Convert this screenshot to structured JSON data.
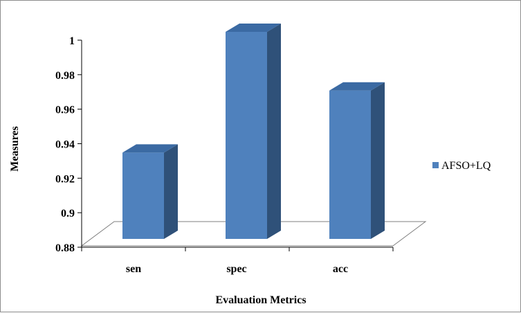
{
  "chart_data": {
    "type": "bar",
    "style": "3d-column",
    "categories": [
      "sen",
      "spec",
      "acc"
    ],
    "series": [
      {
        "name": "AFSO+LQ",
        "values": [
          0.93,
          1.0,
          0.966
        ]
      }
    ],
    "xlabel": "Evaluation Metrics",
    "ylabel": "Measures",
    "ylim": [
      0.88,
      1.0
    ],
    "yticks": [
      "0.88",
      "0.9",
      "0.92",
      "0.94",
      "0.96",
      "0.98",
      "1"
    ],
    "grid": false,
    "legend_position": "right"
  },
  "colors": {
    "bar_front": "#4f81bd",
    "bar_side": "#2f5179",
    "bar_top": "#3b6aa3",
    "floor_line": "#7f7f7f"
  }
}
